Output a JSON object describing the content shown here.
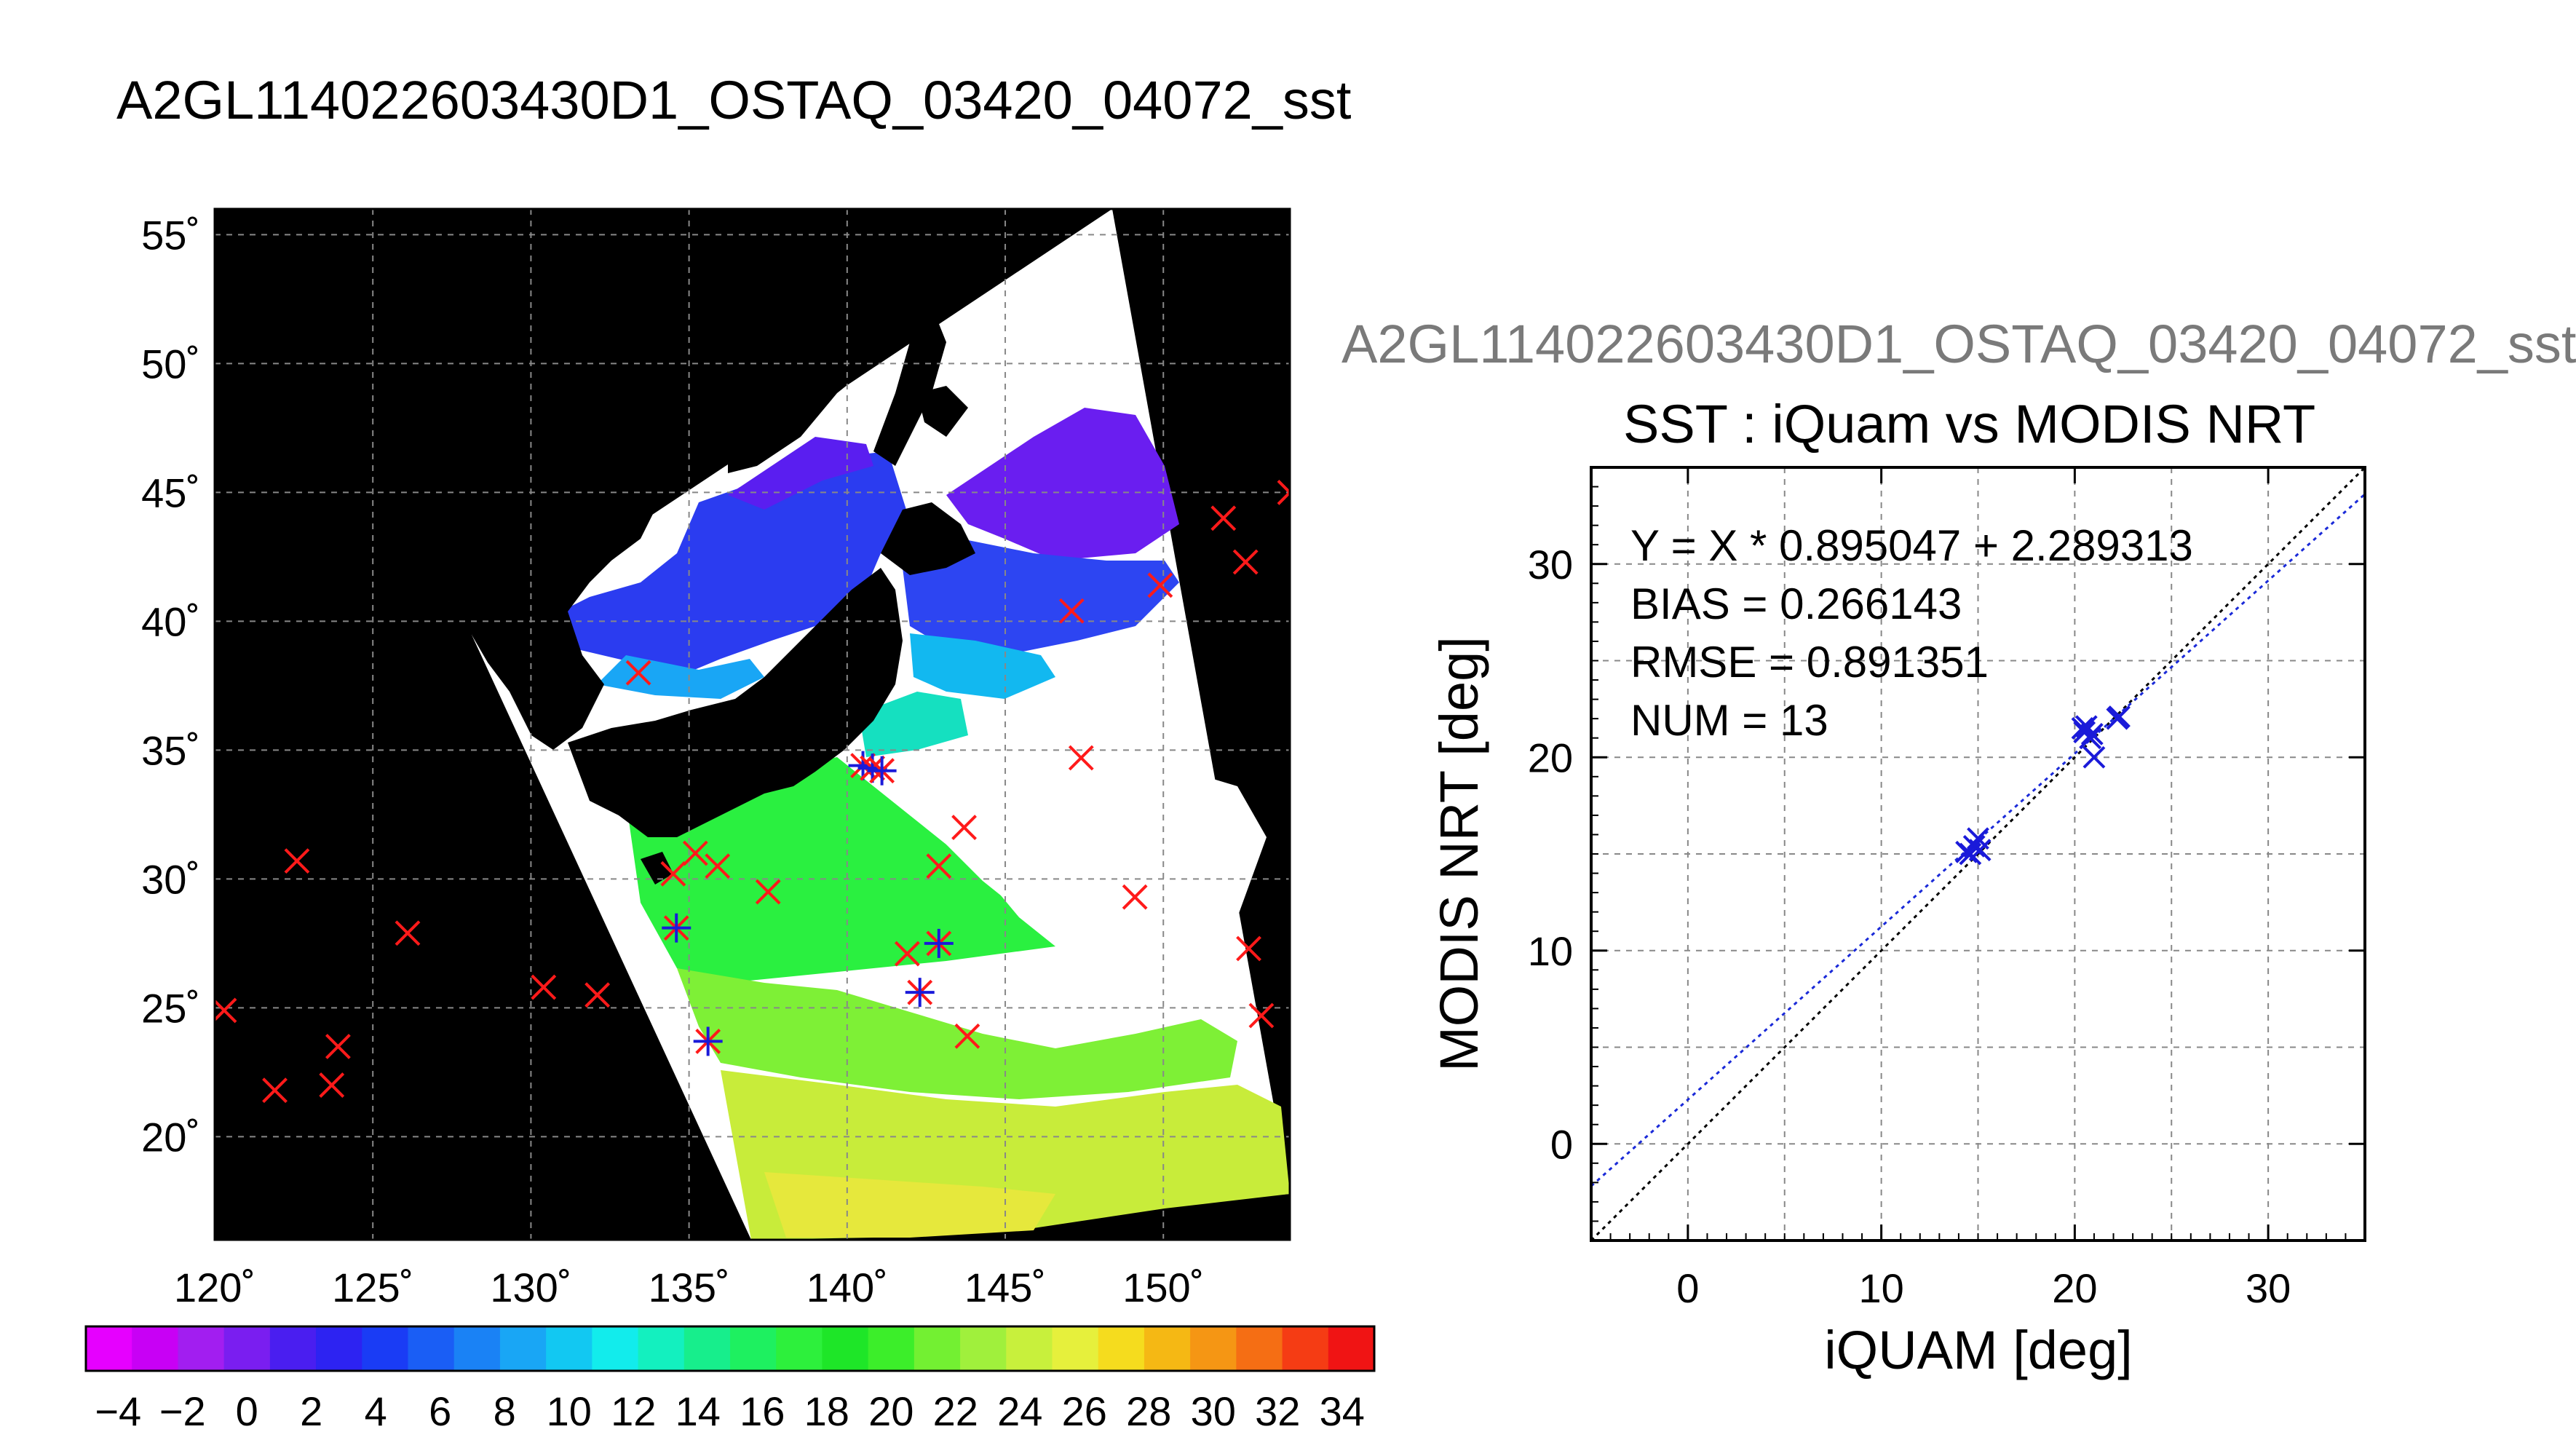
{
  "header": {
    "map_title": "A2GL114022603430D1_OSTAQ_03420_04072_sst",
    "scatter_header": "A2GL114022603430D1_OSTAQ_03420_04072_sst"
  },
  "colors": {
    "matchup_red": "#ff1a1a",
    "matchup_blue": "#1a1ad9",
    "fit_line": "#1a2ad8",
    "one_to_one": "#000000",
    "land": "#000000",
    "cloud": "#ffffff"
  },
  "chart_data": [
    {
      "type": "scatter",
      "name": "map",
      "xlim": [
        120,
        154
      ],
      "ylim": [
        16,
        56
      ],
      "x_ticks": [
        120,
        125,
        130,
        135,
        140,
        145,
        150
      ],
      "x_tick_labels": [
        "120˚",
        "125˚",
        "130˚",
        "135˚",
        "140˚",
        "145˚",
        "150˚"
      ],
      "y_ticks": [
        20,
        25,
        30,
        35,
        40,
        45,
        50,
        55
      ],
      "y_tick_labels": [
        "20˚",
        "25˚",
        "30˚",
        "35˚",
        "40˚",
        "45˚",
        "50˚",
        "55˚"
      ],
      "grid": true,
      "red_markers": [
        [
          120.3,
          24.9
        ],
        [
          121.9,
          21.8
        ],
        [
          122.6,
          30.7
        ],
        [
          123.7,
          22.0
        ],
        [
          123.9,
          23.5
        ],
        [
          126.1,
          27.9
        ],
        [
          130.4,
          25.8
        ],
        [
          132.1,
          25.5
        ],
        [
          133.4,
          38.0
        ],
        [
          134.5,
          30.2
        ],
        [
          135.2,
          31.0
        ],
        [
          135.9,
          30.5
        ],
        [
          137.5,
          29.5
        ],
        [
          141.9,
          27.1
        ],
        [
          142.9,
          30.5
        ],
        [
          143.7,
          32.0
        ],
        [
          143.8,
          23.9
        ],
        [
          147.1,
          40.4
        ],
        [
          147.4,
          34.7
        ],
        [
          149.1,
          29.3
        ],
        [
          149.9,
          41.4
        ],
        [
          151.9,
          44.0
        ],
        [
          152.6,
          42.3
        ],
        [
          152.7,
          27.3
        ],
        [
          153.1,
          24.7
        ],
        [
          154.0,
          45.0
        ]
      ],
      "blue_markers": [
        [
          134.6,
          28.1
        ],
        [
          135.6,
          23.7
        ],
        [
          140.5,
          34.4
        ],
        [
          140.8,
          34.3
        ],
        [
          141.1,
          34.2
        ],
        [
          142.3,
          25.6
        ],
        [
          142.9,
          27.5
        ]
      ],
      "colorbar": {
        "min": -5,
        "max": 35,
        "tick_labels": [
          "−4",
          "−2",
          "0",
          "2",
          "4",
          "6",
          "8",
          "10",
          "12",
          "14",
          "16",
          "18",
          "20",
          "22",
          "24",
          "26",
          "28",
          "30",
          "32",
          "34"
        ],
        "bin_colors": [
          "#e600ff",
          "#c800f5",
          "#a21ef0",
          "#7a1ef0",
          "#4a1ef0",
          "#2d23f2",
          "#1a3cf5",
          "#1a5ef5",
          "#1a82f5",
          "#19a6f5",
          "#12c8f2",
          "#12ecec",
          "#13f0bf",
          "#17ee8c",
          "#1ef060",
          "#2df03c",
          "#1ee628",
          "#3cee2a",
          "#73f032",
          "#a0f03c",
          "#c8f03c",
          "#e6f03c",
          "#f5dc1e",
          "#f5b814",
          "#f59614",
          "#f56e14",
          "#f53c14",
          "#f01414"
        ]
      }
    },
    {
      "type": "scatter",
      "name": "scatter",
      "title": "SST : iQuam vs MODIS NRT",
      "xlabel": "iQUAM [deg]",
      "ylabel": "MODIS NRT [deg]",
      "xlim": [
        -5,
        35
      ],
      "ylim": [
        -5,
        35
      ],
      "x_ticks": [
        0,
        10,
        20,
        30
      ],
      "y_ticks": [
        0,
        10,
        20,
        30
      ],
      "grid": true,
      "points": [
        [
          14.4,
          15.1
        ],
        [
          14.6,
          15.0
        ],
        [
          14.8,
          15.4
        ],
        [
          15.0,
          15.8
        ],
        [
          20.4,
          21.5
        ],
        [
          20.5,
          21.3
        ],
        [
          20.6,
          21.6
        ],
        [
          20.9,
          21.2
        ],
        [
          21.0,
          20.0
        ],
        [
          22.2,
          22.0
        ],
        [
          22.3,
          22.1
        ],
        [
          20.8,
          21.0
        ],
        [
          15.1,
          15.2
        ]
      ],
      "fit": {
        "slope": 0.895047,
        "intercept": 2.289313
      },
      "stats": [
        "Y = X * 0.895047 + 2.289313",
        "BIAS = 0.266143",
        "RMSE = 0.891351",
        "NUM = 13"
      ]
    }
  ]
}
